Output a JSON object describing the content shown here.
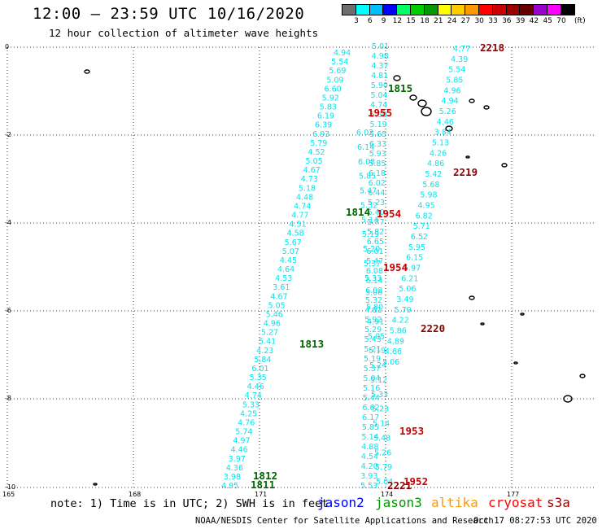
{
  "header": {
    "title": "12:00 — 23:59 UTC 10/16/2020",
    "subtitle": "12 hour collection of altimeter wave heights"
  },
  "colorbar": {
    "unit": "(ft)",
    "labels": [
      "3",
      "6",
      "9",
      "12",
      "15",
      "18",
      "21",
      "24",
      "27",
      "30",
      "33",
      "36",
      "39",
      "42",
      "45",
      "70"
    ],
    "colors": [
      "#6e6e6e",
      "#00ffff",
      "#00bfff",
      "#0000ff",
      "#00ff66",
      "#00cc00",
      "#009900",
      "#ffff00",
      "#ffcc00",
      "#ff9900",
      "#ff0000",
      "#cc0000",
      "#990000",
      "#660000",
      "#9900cc",
      "#ff00ff",
      "#000000"
    ]
  },
  "axes": {
    "y_labels": [
      "0",
      "-2",
      "-4",
      "-6",
      "-8",
      "-10"
    ],
    "x_labels": [
      "165",
      "168",
      "171",
      "174",
      "177"
    ]
  },
  "time_labels": [
    {
      "text": "2218",
      "color": "#8b0000"
    },
    {
      "text": "1815",
      "color": "#006400"
    },
    {
      "text": "1955",
      "color": "#cc0000"
    },
    {
      "text": "2219",
      "color": "#8b0000"
    },
    {
      "text": "1814",
      "color": "#006400"
    },
    {
      "text": "1954",
      "color": "#cc0000"
    },
    {
      "text": "1954",
      "color": "#cc0000"
    },
    {
      "text": "2220",
      "color": "#8b0000"
    },
    {
      "text": "1813",
      "color": "#006400"
    },
    {
      "text": "1953",
      "color": "#cc0000"
    },
    {
      "text": "1812",
      "color": "#006400"
    },
    {
      "text": "1811",
      "color": "#006400"
    },
    {
      "text": "2221",
      "color": "#8b0000"
    },
    {
      "text": "1952",
      "color": "#cc0000"
    }
  ],
  "tracks": {
    "jason3_left": [
      "4.94",
      "5.54",
      "5.69",
      "5.09",
      "6.60",
      "5.92",
      "5.83",
      "6.19",
      "6.39",
      "6.93",
      "5.79",
      "4.52",
      "5.05",
      "4.67",
      "4.73",
      "5.18",
      "4.48",
      "4.74",
      "4.77",
      "4.51",
      "4.58",
      "5.67",
      "5.07",
      "4.45",
      "4.64",
      "4.53",
      "3.61",
      "4.67",
      "5.05",
      "5.46",
      "4.96",
      "5.27",
      "5.41",
      "4.23",
      "5.84",
      "6.01",
      "5.35",
      "4.46",
      "4.74",
      "5.33",
      "4.25",
      "4.76",
      "5.74",
      "4.97",
      "4.46",
      "3.97",
      "4.36",
      "3.98",
      "4.95"
    ],
    "jason3_right": [
      "5.01",
      "4.98",
      "4.37",
      "4.81",
      "5.90",
      "5.04",
      "4.74",
      "5.30",
      "5.19",
      "5.65",
      "6.33",
      "5.93",
      "5.85",
      "6.18",
      "6.02",
      "6.44",
      "5.23",
      "5.40",
      "5.77",
      "5.82",
      "6.65",
      "6.01",
      "5.47",
      "6.08",
      "6.14",
      "6.08",
      "5.32",
      "4.81",
      "5.92",
      "5.29",
      "5.43",
      "5.21",
      "5.19",
      "5.37",
      "5.04",
      "5.16",
      "5.44",
      "6.62",
      "6.17",
      "5.85",
      "5.14",
      "4.88",
      "4.54",
      "4.20",
      "3.93",
      "5.53"
    ],
    "cryosat_track": [
      "6.02",
      "6.14",
      "6.08",
      "5.85",
      "5.47",
      "5.32",
      "5.14",
      "5.19",
      "5.20",
      "5.37",
      "5.33",
      "5.06",
      "5.80",
      "4.91",
      "5.05",
      "5.19",
      "5.24",
      "5.12",
      "5.33",
      "5.23",
      "5.14",
      "5.48",
      "5.26",
      "5.79",
      "5.04"
    ],
    "s3a_track": [
      "4.77",
      "4.39",
      "5.54",
      "5.85",
      "4.96",
      "4.94",
      "5.26",
      "4.46",
      "3.84",
      "5.13",
      "4.26",
      "4.86",
      "5.42",
      "5.68",
      "5.98",
      "4.95",
      "6.82",
      "5.71",
      "6.52",
      "5.95",
      "6.15",
      "5.97",
      "6.21",
      "5.06",
      "3.49",
      "5.79",
      "4.22",
      "5.86",
      "4.89",
      "4.66",
      "5.06"
    ]
  },
  "footer": {
    "note": "note: 1) Time is in UTC; 2) SWH is in feet",
    "sats": [
      {
        "name": "jason2",
        "color": "#0000ff"
      },
      {
        "name": "jason3",
        "color": "#009900"
      },
      {
        "name": "altika",
        "color": "#ff9900"
      },
      {
        "name": "cryosat",
        "color": "#ff0000"
      },
      {
        "name": "s3a",
        "color": "#990000"
      }
    ],
    "credit": "NOAA/NESDIS Center for Satellite Applications and Research",
    "timestamp": "Oct 17 08:27:53 UTC 2020"
  }
}
